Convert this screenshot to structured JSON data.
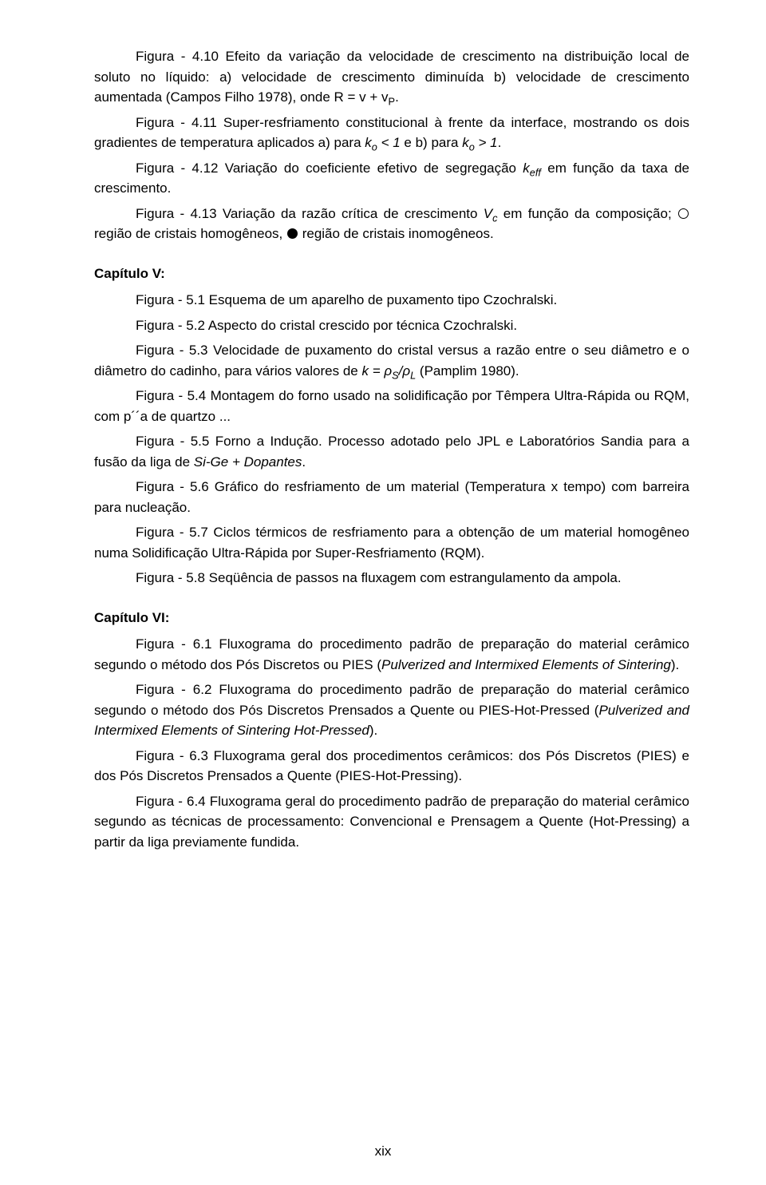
{
  "fig4_10": "Figura - 4.10 Efeito da variação da velocidade de crescimento na distribuição local de soluto no líquido: a) velocidade de crescimento diminuída b) velocidade de crescimento aumentada (Campos Filho 1978), onde R = v + v",
  "fig4_10_sub": "P",
  "fig4_10_end": ".",
  "fig4_11_a": "Figura - 4.11 Super-resfriamento constitucional à frente da interface, mostrando os dois gradientes de temperatura aplicados a) para ",
  "fig4_11_b": "k",
  "fig4_11_c": "o",
  "fig4_11_d": " < 1",
  "fig4_11_e": " e b) para ",
  "fig4_11_f": "k",
  "fig4_11_g": "o",
  "fig4_11_h": " > 1",
  "fig4_11_i": ".",
  "fig4_12_a": "Figura - 4.12 Variação do coeficiente efetivo de segregação ",
  "fig4_12_b": "k",
  "fig4_12_c": "eff",
  "fig4_12_d": " em função da taxa de crescimento.",
  "fig4_13_a": "Figura - 4.13 Variação da razão crítica de crescimento ",
  "fig4_13_b": "V",
  "fig4_13_c": "c",
  "fig4_13_d": " em função da composição; ",
  "fig4_13_e": " região de cristais homogêneos, ",
  "fig4_13_f": " região de cristais inomogêneos.",
  "cap5_title": "Capítulo V:",
  "fig5_1": "Figura - 5.1 Esquema de um aparelho de puxamento tipo Czochralski.",
  "fig5_2": "Figura - 5.2 Aspecto do cristal crescido por técnica Czochralski.",
  "fig5_3_a": "Figura - 5.3 Velocidade de puxamento do cristal versus a razão entre o seu diâmetro e o diâmetro do cadinho, para vários valores de ",
  "fig5_3_b": "k = ",
  "fig5_3_c": "ρ",
  "fig5_3_d": "S",
  "fig5_3_e": "/",
  "fig5_3_f": "ρ",
  "fig5_3_g": "L",
  "fig5_3_h": " (Pamplim 1980).",
  "fig5_4": "Figura - 5.4 Montagem do forno usado na solidificação por Têmpera Ultra-Rápida ou RQM, com p´´a de quartzo ...",
  "fig5_5_a": "Figura - 5.5 Forno a Indução. Processo adotado pelo JPL e Laboratórios Sandia para a fusão da liga de ",
  "fig5_5_b": "Si-Ge + Dopantes",
  "fig5_5_c": ".",
  "fig5_6": "Figura - 5.6 Gráfico do resfriamento de um material (Temperatura x tempo) com barreira para nucleação.",
  "fig5_7": "Figura - 5.7 Ciclos térmicos de resfriamento para a obtenção de um material homogêneo numa Solidificação Ultra-Rápida por Super-Resfriamento (RQM).",
  "fig5_8": "Figura - 5.8 Seqüência de passos na fluxagem com estrangulamento da ampola.",
  "cap6_title": "Capítulo VI:",
  "fig6_1_a": "Figura - 6.1 Fluxograma do procedimento padrão de preparação do material cerâmico segundo o método dos Pós Discretos ou PIES (",
  "fig6_1_b": "Pulverized and Intermixed Elements of Sintering",
  "fig6_1_c": ").",
  "fig6_2_a": "Figura - 6.2 Fluxograma do procedimento padrão de preparação do material cerâmico segundo o método dos Pós Discretos Prensados a Quente ou PIES-Hot-Pressed (",
  "fig6_2_b": "Pulverized and Intermixed Elements of Sintering Hot-Pressed",
  "fig6_2_c": ").",
  "fig6_3": "Figura - 6.3 Fluxograma geral dos procedimentos cerâmicos: dos Pós Discretos (PIES) e dos Pós Discretos Prensados a Quente (PIES-Hot-Pressing).",
  "fig6_4": "Figura - 6.4 Fluxograma geral do procedimento padrão de preparação do material cerâmico segundo as técnicas de processamento: Convencional e Prensagem a Quente (Hot-Pressing) a partir da liga previamente fundida.",
  "page_num": "xix"
}
